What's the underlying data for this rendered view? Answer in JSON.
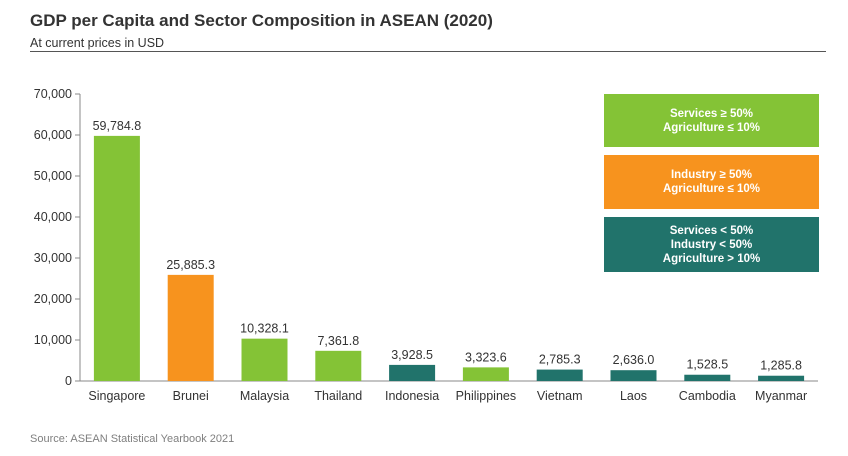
{
  "title": "GDP per Capita and Sector Composition in ASEAN (2020)",
  "subtitle": "At current prices in USD",
  "source": "Source: ASEAN Statistical Yearbook 2021",
  "colors": {
    "services": "#84c336",
    "industry": "#f7931e",
    "mixed": "#21736b"
  },
  "legend": [
    {
      "key": "services",
      "lines": [
        "Services ≥ 50%",
        "Agriculture ≤ 10%"
      ]
    },
    {
      "key": "industry",
      "lines": [
        "Industry ≥ 50%",
        "Agriculture ≤ 10%"
      ]
    },
    {
      "key": "mixed",
      "lines": [
        "Services < 50%",
        "Industry < 50%",
        "Agriculture > 10%"
      ]
    }
  ],
  "chart_data": {
    "type": "bar",
    "categories": [
      "Singapore",
      "Brunei",
      "Malaysia",
      "Thailand",
      "Indonesia",
      "Philippines",
      "Vietnam",
      "Laos",
      "Cambodia",
      "Myanmar"
    ],
    "values": [
      59784.8,
      25885.3,
      10328.1,
      7361.8,
      3928.5,
      3323.6,
      2785.3,
      2636.0,
      1528.5,
      1285.8
    ],
    "value_labels": [
      "59,784.8",
      "25,885.3",
      "10,328.1",
      "7,361.8",
      "3,928.5",
      "3,323.6",
      "2,785.3",
      "2,636.0",
      "1,528.5",
      "1,285.8"
    ],
    "groups": [
      "services",
      "industry",
      "services",
      "services",
      "mixed",
      "services",
      "mixed",
      "mixed",
      "mixed",
      "mixed"
    ],
    "ylim": [
      0,
      70000
    ],
    "yticks": [
      0,
      10000,
      20000,
      30000,
      40000,
      50000,
      60000,
      70000
    ],
    "ytick_labels": [
      "0",
      "10,000",
      "20,000",
      "30,000",
      "40,000",
      "50,000",
      "60,000",
      "70,000"
    ],
    "grid": false
  }
}
